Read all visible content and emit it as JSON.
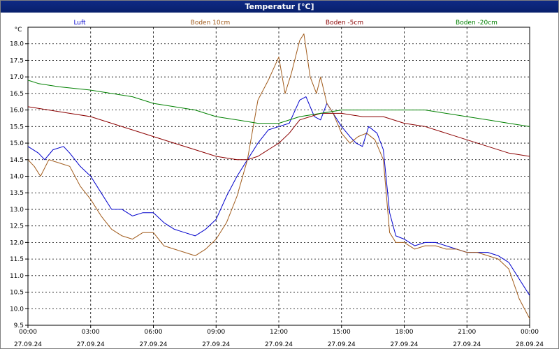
{
  "window": {
    "title": "Temperatur [°C]"
  },
  "chart_data": {
    "type": "line",
    "title": "Temperatur [°C]",
    "y_unit": "°C",
    "ylim": [
      9.5,
      18.5
    ],
    "y_ticks": [
      "9.5",
      "10.0",
      "10.5",
      "11.0",
      "11.5",
      "12.0",
      "12.5",
      "13.0",
      "13.5",
      "14.0",
      "14.5",
      "15.0",
      "15.5",
      "16.0",
      "16.5",
      "17.0",
      "17.5",
      "18.0"
    ],
    "x_ticks": [
      {
        "time": "00:00",
        "date": "27.09.24"
      },
      {
        "time": "03:00",
        "date": "27.09.24"
      },
      {
        "time": "06:00",
        "date": "27.09.24"
      },
      {
        "time": "09:00",
        "date": "27.09.24"
      },
      {
        "time": "12:00",
        "date": "27.09.24"
      },
      {
        "time": "15:00",
        "date": "27.09.24"
      },
      {
        "time": "18:00",
        "date": "27.09.24"
      },
      {
        "time": "21:00",
        "date": "27.09.24"
      },
      {
        "time": "00:00",
        "date": "28.09.24"
      }
    ],
    "grid": true,
    "series": [
      {
        "name": "Luft",
        "color": "#0000cc",
        "points": [
          [
            0.0,
            14.9
          ],
          [
            0.5,
            14.7
          ],
          [
            0.8,
            14.5
          ],
          [
            1.2,
            14.8
          ],
          [
            1.7,
            14.9
          ],
          [
            2.0,
            14.7
          ],
          [
            2.5,
            14.3
          ],
          [
            3.0,
            14.0
          ],
          [
            3.5,
            13.5
          ],
          [
            4.0,
            13.0
          ],
          [
            4.5,
            13.0
          ],
          [
            5.0,
            12.8
          ],
          [
            5.5,
            12.9
          ],
          [
            6.0,
            12.9
          ],
          [
            6.5,
            12.6
          ],
          [
            7.0,
            12.4
          ],
          [
            7.5,
            12.3
          ],
          [
            8.0,
            12.2
          ],
          [
            8.5,
            12.4
          ],
          [
            9.0,
            12.7
          ],
          [
            9.5,
            13.4
          ],
          [
            10.0,
            14.0
          ],
          [
            10.5,
            14.5
          ],
          [
            11.0,
            15.0
          ],
          [
            11.5,
            15.4
          ],
          [
            12.0,
            15.5
          ],
          [
            12.5,
            15.6
          ],
          [
            13.0,
            16.3
          ],
          [
            13.3,
            16.4
          ],
          [
            13.7,
            15.8
          ],
          [
            14.0,
            15.7
          ],
          [
            14.3,
            16.2
          ],
          [
            14.6,
            15.9
          ],
          [
            15.0,
            15.5
          ],
          [
            15.4,
            15.2
          ],
          [
            15.7,
            15.0
          ],
          [
            16.0,
            14.9
          ],
          [
            16.3,
            15.5
          ],
          [
            16.7,
            15.3
          ],
          [
            17.0,
            14.8
          ],
          [
            17.3,
            12.9
          ],
          [
            17.6,
            12.2
          ],
          [
            18.0,
            12.1
          ],
          [
            18.5,
            11.9
          ],
          [
            19.0,
            12.0
          ],
          [
            19.5,
            12.0
          ],
          [
            20.0,
            11.9
          ],
          [
            20.5,
            11.8
          ],
          [
            21.0,
            11.7
          ],
          [
            22.0,
            11.7
          ],
          [
            22.5,
            11.6
          ],
          [
            23.0,
            11.4
          ],
          [
            23.5,
            10.9
          ],
          [
            24.0,
            10.4
          ]
        ]
      },
      {
        "name": "Boden 10cm",
        "color": "#a05a1a",
        "points": [
          [
            0.0,
            14.5
          ],
          [
            0.3,
            14.3
          ],
          [
            0.6,
            14.0
          ],
          [
            1.0,
            14.5
          ],
          [
            1.5,
            14.4
          ],
          [
            2.0,
            14.3
          ],
          [
            2.5,
            13.7
          ],
          [
            3.0,
            13.3
          ],
          [
            3.5,
            12.8
          ],
          [
            4.0,
            12.4
          ],
          [
            4.5,
            12.2
          ],
          [
            5.0,
            12.1
          ],
          [
            5.5,
            12.3
          ],
          [
            6.0,
            12.3
          ],
          [
            6.5,
            11.9
          ],
          [
            7.0,
            11.8
          ],
          [
            7.5,
            11.7
          ],
          [
            8.0,
            11.6
          ],
          [
            8.5,
            11.8
          ],
          [
            9.0,
            12.1
          ],
          [
            9.5,
            12.6
          ],
          [
            10.0,
            13.4
          ],
          [
            10.5,
            14.5
          ],
          [
            11.0,
            16.3
          ],
          [
            11.5,
            16.9
          ],
          [
            12.0,
            17.6
          ],
          [
            12.3,
            16.5
          ],
          [
            12.6,
            17.1
          ],
          [
            13.0,
            18.1
          ],
          [
            13.2,
            18.3
          ],
          [
            13.5,
            17.0
          ],
          [
            13.8,
            16.5
          ],
          [
            14.0,
            17.0
          ],
          [
            14.3,
            16.2
          ],
          [
            14.6,
            15.9
          ],
          [
            15.0,
            15.3
          ],
          [
            15.4,
            15.0
          ],
          [
            15.8,
            15.2
          ],
          [
            16.2,
            15.3
          ],
          [
            16.6,
            15.1
          ],
          [
            17.0,
            14.5
          ],
          [
            17.3,
            12.3
          ],
          [
            17.6,
            12.0
          ],
          [
            18.0,
            12.0
          ],
          [
            18.5,
            11.8
          ],
          [
            19.0,
            11.9
          ],
          [
            19.5,
            11.9
          ],
          [
            20.0,
            11.8
          ],
          [
            20.5,
            11.8
          ],
          [
            21.0,
            11.7
          ],
          [
            21.5,
            11.7
          ],
          [
            22.0,
            11.6
          ],
          [
            22.5,
            11.5
          ],
          [
            23.0,
            11.2
          ],
          [
            23.5,
            10.3
          ],
          [
            24.0,
            9.7
          ]
        ]
      },
      {
        "name": "Boden -5cm",
        "color": "#8b0000",
        "points": [
          [
            0.0,
            16.1
          ],
          [
            1.0,
            16.0
          ],
          [
            2.0,
            15.9
          ],
          [
            3.0,
            15.8
          ],
          [
            4.0,
            15.6
          ],
          [
            5.0,
            15.4
          ],
          [
            6.0,
            15.2
          ],
          [
            7.0,
            15.0
          ],
          [
            8.0,
            14.8
          ],
          [
            9.0,
            14.6
          ],
          [
            10.0,
            14.5
          ],
          [
            10.5,
            14.5
          ],
          [
            11.0,
            14.6
          ],
          [
            11.5,
            14.8
          ],
          [
            12.0,
            15.0
          ],
          [
            12.5,
            15.3
          ],
          [
            13.0,
            15.7
          ],
          [
            13.5,
            15.8
          ],
          [
            14.0,
            15.9
          ],
          [
            15.0,
            15.9
          ],
          [
            16.0,
            15.8
          ],
          [
            17.0,
            15.8
          ],
          [
            18.0,
            15.6
          ],
          [
            19.0,
            15.5
          ],
          [
            20.0,
            15.3
          ],
          [
            21.0,
            15.1
          ],
          [
            22.0,
            14.9
          ],
          [
            23.0,
            14.7
          ],
          [
            24.0,
            14.6
          ]
        ]
      },
      {
        "name": "Boden -20cm",
        "color": "#008000",
        "points": [
          [
            0.0,
            16.9
          ],
          [
            0.5,
            16.8
          ],
          [
            1.5,
            16.7
          ],
          [
            3.0,
            16.6
          ],
          [
            4.0,
            16.5
          ],
          [
            5.0,
            16.4
          ],
          [
            6.0,
            16.2
          ],
          [
            7.0,
            16.1
          ],
          [
            8.0,
            16.0
          ],
          [
            9.0,
            15.8
          ],
          [
            10.0,
            15.7
          ],
          [
            11.0,
            15.6
          ],
          [
            12.0,
            15.6
          ],
          [
            13.0,
            15.8
          ],
          [
            14.0,
            15.9
          ],
          [
            15.0,
            16.0
          ],
          [
            16.0,
            16.0
          ],
          [
            17.0,
            16.0
          ],
          [
            18.0,
            16.0
          ],
          [
            19.0,
            16.0
          ],
          [
            20.0,
            15.9
          ],
          [
            21.0,
            15.8
          ],
          [
            22.0,
            15.7
          ],
          [
            23.0,
            15.6
          ],
          [
            24.0,
            15.5
          ]
        ]
      }
    ]
  }
}
